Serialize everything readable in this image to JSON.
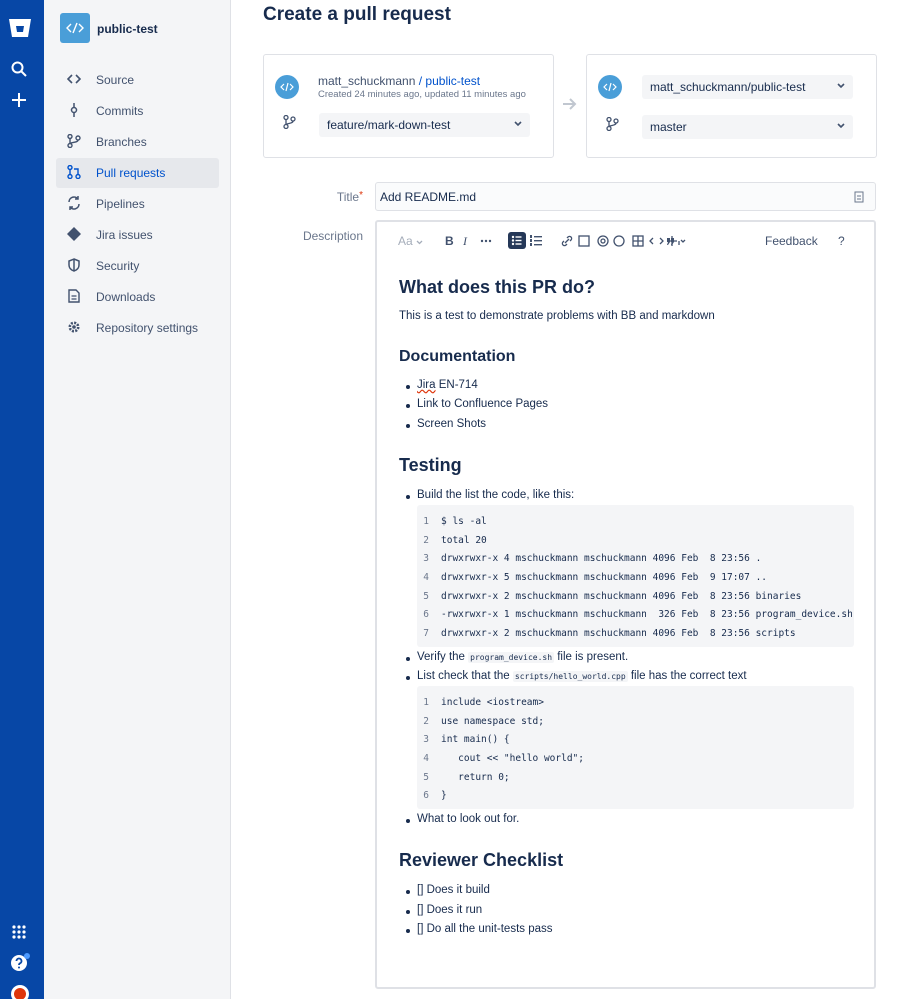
{
  "sidebar": {
    "repo_name": "public-test",
    "nav": [
      "Source",
      "Commits",
      "Branches",
      "Pull requests",
      "Pipelines",
      "Jira issues",
      "Security",
      "Downloads",
      "Repository settings"
    ]
  },
  "header": {
    "title": "Create a pull request"
  },
  "source": {
    "owner": "matt_schuckmann",
    "separator": "/",
    "repo": "public-test",
    "meta": "Created 24 minutes ago, updated 11 minutes ago",
    "branch": "feature/mark-down-test"
  },
  "destination": {
    "repo": "matt_schuckmann/public-test",
    "branch": "master"
  },
  "form": {
    "title_label": "Title",
    "required": "*",
    "title_value": "Add README.md",
    "description_label": "Description"
  },
  "toolbar": {
    "text_style": "Aa",
    "bold": "B",
    "italic": "I",
    "feedback": "Feedback",
    "help": "?"
  },
  "content": {
    "h_what": "What does this PR do?",
    "intro": "This is a test to demonstrate problems with BB and markdown",
    "h_docs": "Documentation",
    "docs": [
      {
        "word": "Jira",
        "rest": " EN-714"
      },
      "Link to Confluence Pages",
      "Screen Shots"
    ],
    "h_testing": "Testing",
    "build": "Build the list the code, like this:",
    "code1": [
      {
        "number": 1,
        "text": "$ ls -al"
      },
      {
        "number": 2,
        "text": "total 20"
      },
      {
        "number": 3,
        "text": "drwxrwxr-x 4 mschuckmann mschuckmann 4096 Feb  8 23:56 ."
      },
      {
        "number": 4,
        "text": "drwxrwxr-x 5 mschuckmann mschuckmann 4096 Feb  9 17:07 .."
      },
      {
        "number": 5,
        "text": "drwxrwxr-x 2 mschuckmann mschuckmann 4096 Feb  8 23:56 binaries"
      },
      {
        "number": 6,
        "text": "-rwxrwxr-x 1 mschuckmann mschuckmann  326 Feb  8 23:56 program_device.sh"
      },
      {
        "number": 7,
        "text": "drwxrwxr-x 2 mschuckmann mschuckmann 4096 Feb  8 23:56 scripts"
      }
    ],
    "verify": {
      "before": "Verify the ",
      "code": "program_device.sh",
      "after": " file is present."
    },
    "check": {
      "before": "List check that the ",
      "code": "scripts/hello_world.cpp",
      "after": " file has the correct text"
    },
    "code2": [
      {
        "number": 1,
        "text": "include <iostream>"
      },
      {
        "number": 2,
        "text": "use namespace std;"
      },
      {
        "number": 3,
        "text": "int main() {"
      },
      {
        "number": 4,
        "text": "   cout << \"hello world\";"
      },
      {
        "number": 5,
        "text": "   return 0;"
      },
      {
        "number": 6,
        "text": "}"
      }
    ],
    "lookout": "What to look out for.",
    "h_review": "Reviewer Checklist",
    "checklist": [
      "[] Does it build",
      "[] Does it run",
      "[] Do all the unit-tests pass"
    ]
  }
}
